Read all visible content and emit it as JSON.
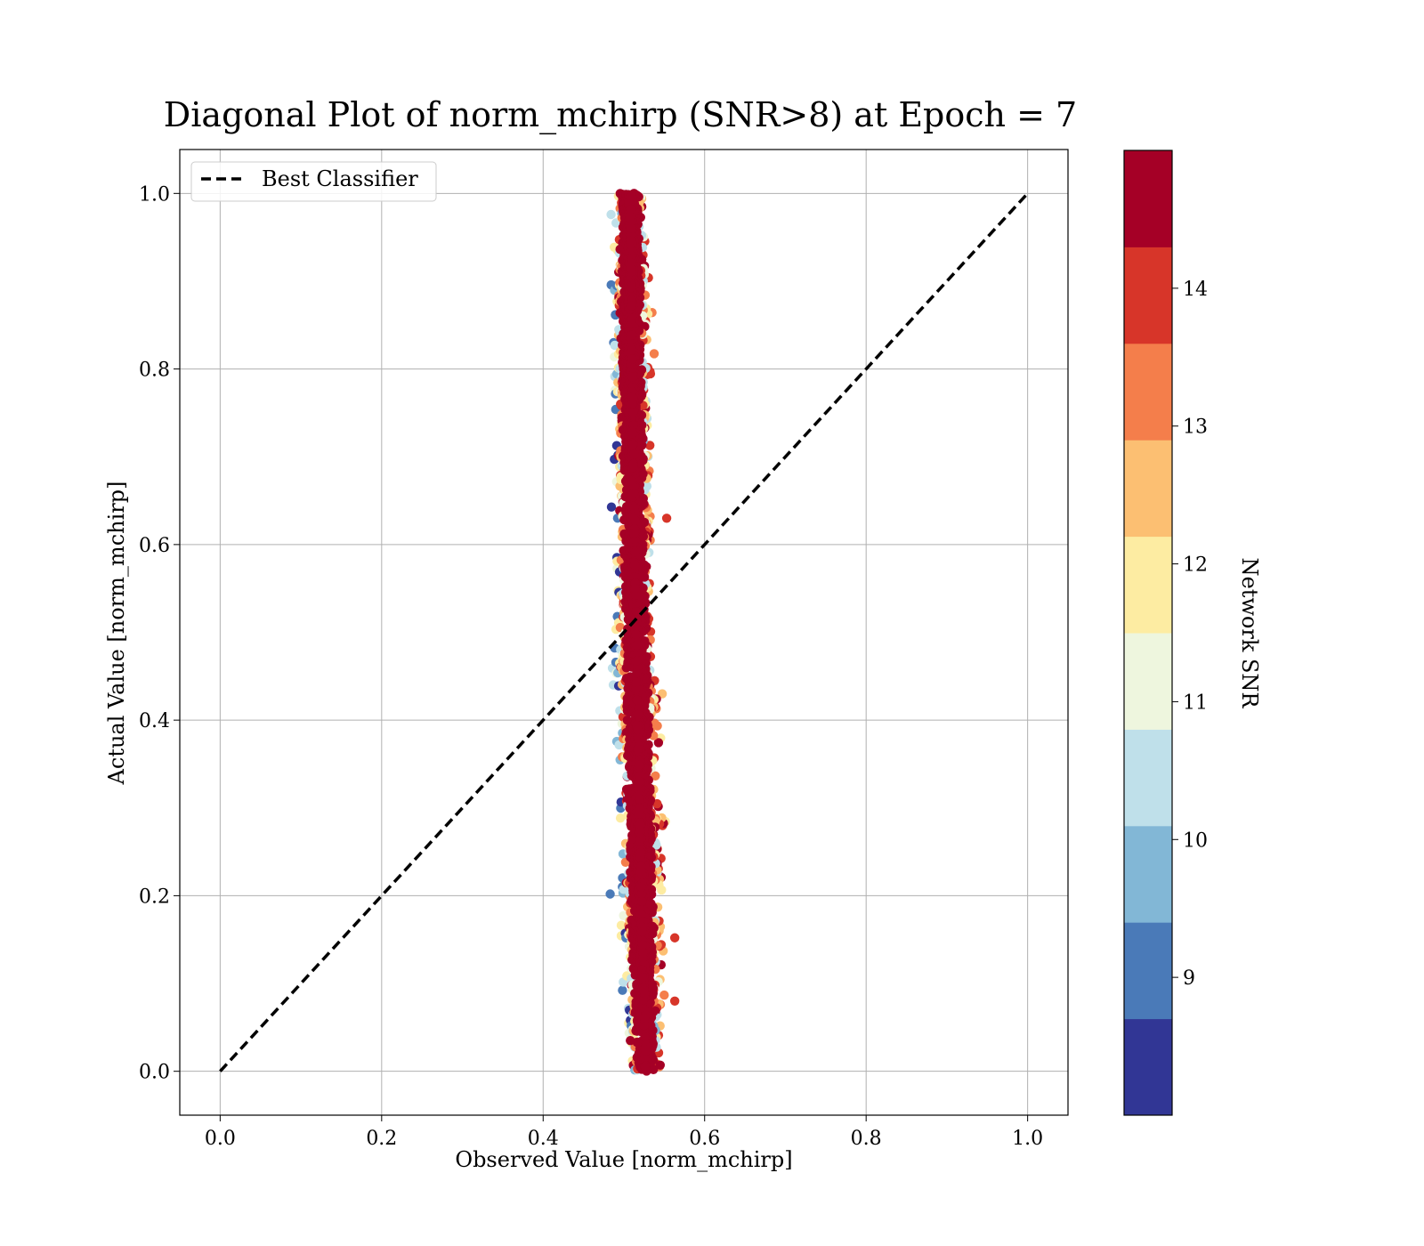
{
  "chart_data": {
    "type": "scatter",
    "title": "Diagonal Plot of norm_mchirp (SNR>8) at Epoch = 7",
    "xlabel": "Observed Value [norm_mchirp]",
    "ylabel": "Actual Value [norm_mchirp]",
    "xlim": [
      -0.05,
      1.05
    ],
    "ylim": [
      -0.05,
      1.05
    ],
    "xticks": [
      "0.0",
      "0.2",
      "0.4",
      "0.6",
      "0.8",
      "1.0"
    ],
    "yticks": [
      "0.0",
      "0.2",
      "0.4",
      "0.6",
      "0.8",
      "1.0"
    ],
    "grid": true,
    "legend": {
      "position": "top-left",
      "entries": [
        {
          "label": "Best Classifier",
          "style": "dashed",
          "color": "#000000"
        }
      ]
    },
    "reference_line": {
      "label": "Best Classifier",
      "x": [
        0.0,
        1.0
      ],
      "y": [
        0.0,
        1.0
      ],
      "style": "dashed",
      "color": "#000000"
    },
    "scatter_cloud": {
      "description_points": [
        {
          "y": 1.0,
          "x_center": 0.508,
          "x_halfwidth": 0.02
        },
        {
          "y": 0.8,
          "x_center": 0.51,
          "x_halfwidth": 0.025
        },
        {
          "y": 0.6,
          "x_center": 0.513,
          "x_halfwidth": 0.025
        },
        {
          "y": 0.4,
          "x_center": 0.517,
          "x_halfwidth": 0.027
        },
        {
          "y": 0.2,
          "x_center": 0.522,
          "x_halfwidth": 0.028
        },
        {
          "y": 0.0,
          "x_center": 0.527,
          "x_halfwidth": 0.02
        }
      ],
      "outliers": [
        {
          "x": 0.553,
          "y": 0.63,
          "snr": 13.9
        },
        {
          "x": 0.563,
          "y": 0.08,
          "snr": 13.9
        },
        {
          "x": 0.563,
          "y": 0.152,
          "snr": 13.9
        },
        {
          "x": 0.508,
          "y": 0.035,
          "snr": 14.5
        },
        {
          "x": 0.545,
          "y": 0.007,
          "snr": 14.5
        }
      ]
    },
    "colorbar": {
      "label": "Network SNR",
      "min": 8,
      "max": 15,
      "ticks": [
        "9",
        "10",
        "11",
        "12",
        "13",
        "14"
      ],
      "bins": [
        {
          "from": 8.0,
          "to": 8.7,
          "color": "#313695"
        },
        {
          "from": 8.7,
          "to": 9.4,
          "color": "#4a7ab8"
        },
        {
          "from": 9.4,
          "to": 10.1,
          "color": "#82b7d6"
        },
        {
          "from": 10.1,
          "to": 10.8,
          "color": "#bfe0ea"
        },
        {
          "from": 10.8,
          "to": 11.5,
          "color": "#eef6de"
        },
        {
          "from": 11.5,
          "to": 12.2,
          "color": "#fdeca2"
        },
        {
          "from": 12.2,
          "to": 12.9,
          "color": "#fcbf72"
        },
        {
          "from": 12.9,
          "to": 13.6,
          "color": "#f47e4b"
        },
        {
          "from": 13.6,
          "to": 14.3,
          "color": "#d73529"
        },
        {
          "from": 14.3,
          "to": 15.0,
          "color": "#a50026"
        }
      ]
    }
  }
}
